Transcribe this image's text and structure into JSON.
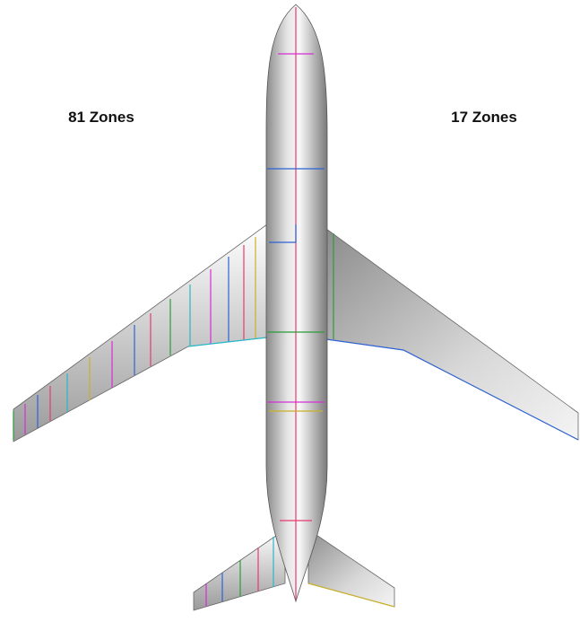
{
  "labels": {
    "left": "81 Zones",
    "right": "17 Zones"
  }
}
